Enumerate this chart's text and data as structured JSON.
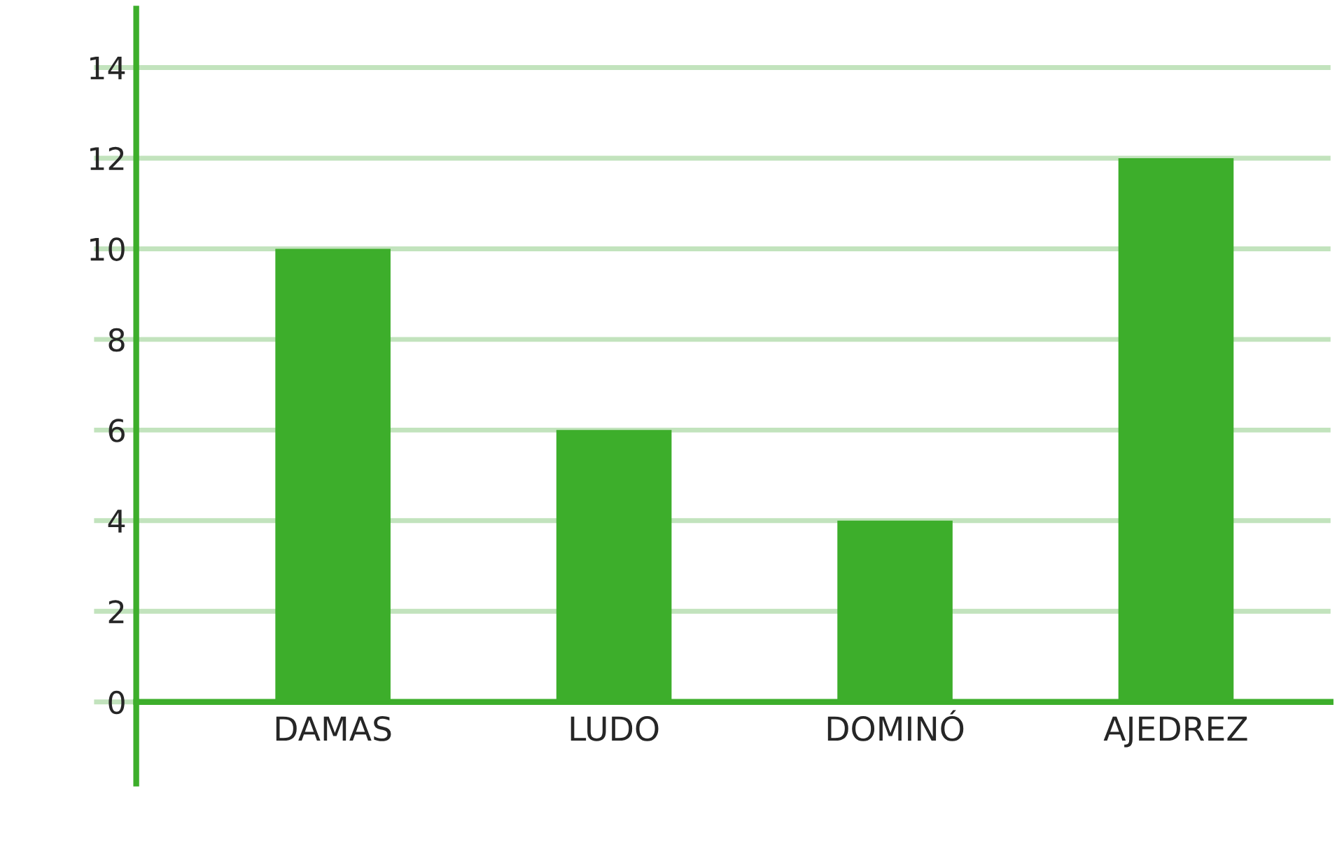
{
  "chart_data": {
    "type": "bar",
    "categories": [
      "DAMAS",
      "LUDO",
      "DOMINÓ",
      "AJEDREZ"
    ],
    "values": [
      10,
      6,
      4,
      12
    ],
    "color": "#3dae2b",
    "ylim": [
      -1.8,
      15.3
    ],
    "yticks": [
      0,
      2,
      4,
      6,
      8,
      10,
      12,
      14
    ],
    "grid": "y",
    "legend": false
  }
}
